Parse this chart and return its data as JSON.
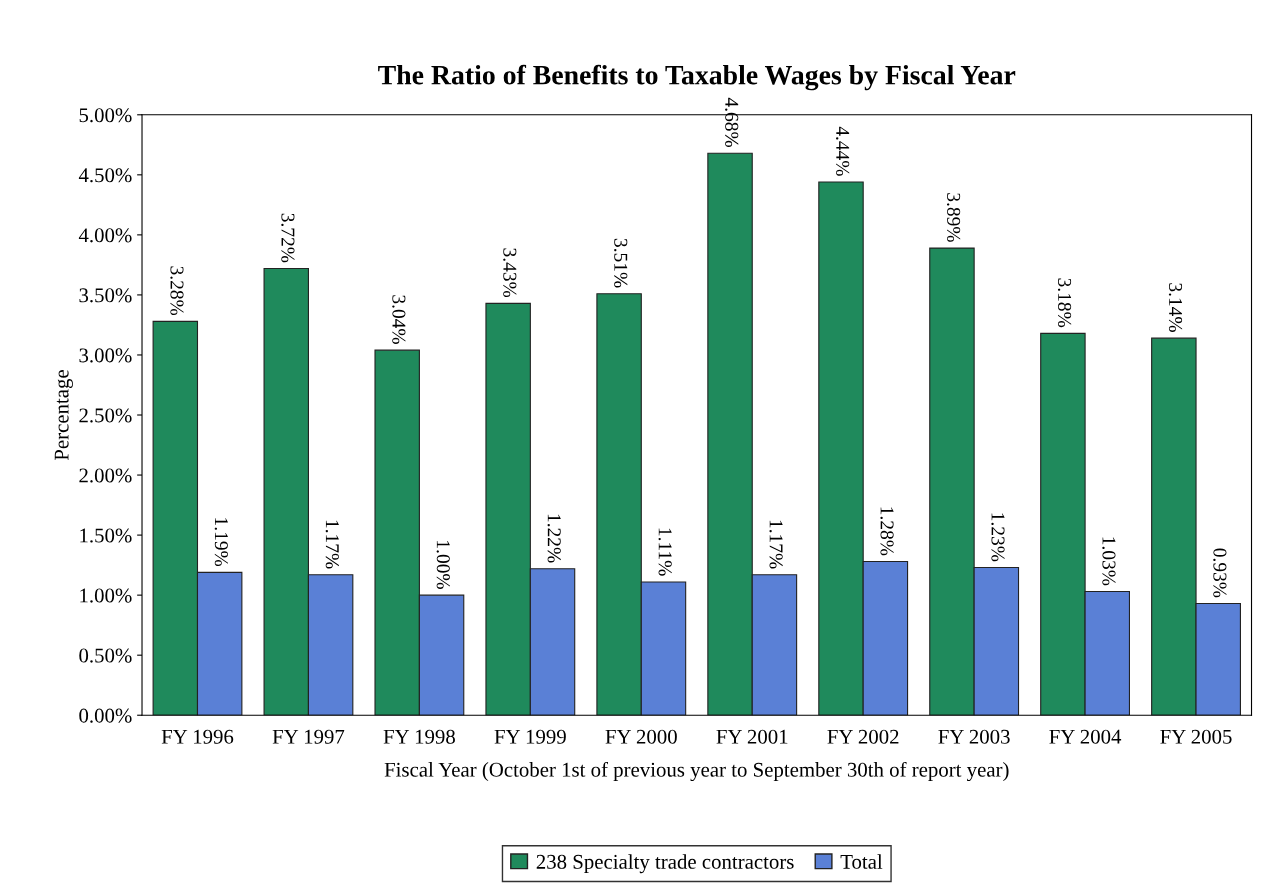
{
  "chart_data": {
    "type": "bar",
    "title": "The Ratio of Benefits to Taxable Wages by Fiscal Year",
    "xlabel": "Fiscal Year (October 1st of previous year to September 30th of report year)",
    "ylabel": "Percentage",
    "categories": [
      "FY 1996",
      "FY 1997",
      "FY 1998",
      "FY 1999",
      "FY 2000",
      "FY 2001",
      "FY 2002",
      "FY 2003",
      "FY 2004",
      "FY 2005"
    ],
    "series": [
      {
        "name": "238 Specialty trade contractors",
        "color": "#1f8a5c",
        "values": [
          3.28,
          3.72,
          3.04,
          3.43,
          3.51,
          4.68,
          4.44,
          3.89,
          3.18,
          3.14
        ],
        "value_labels": [
          "3.28%",
          "3.72%",
          "3.04%",
          "3.43%",
          "3.51%",
          "4.68%",
          "4.44%",
          "3.89%",
          "3.18%",
          "3.14%"
        ]
      },
      {
        "name": "Total",
        "color": "#5a80d6",
        "values": [
          1.19,
          1.17,
          1.0,
          1.22,
          1.11,
          1.17,
          1.28,
          1.23,
          1.03,
          0.93
        ],
        "value_labels": [
          "1.19%",
          "1.17%",
          "1.00%",
          "1.22%",
          "1.11%",
          "1.17%",
          "1.28%",
          "1.23%",
          "1.03%",
          "0.93%"
        ]
      }
    ],
    "ylim": [
      0,
      5
    ],
    "yticks": [
      {
        "value": 0,
        "label": "0.00%"
      },
      {
        "value": 0.5,
        "label": "0.50%"
      },
      {
        "value": 1,
        "label": "1.00%"
      },
      {
        "value": 1.5,
        "label": "1.50%"
      },
      {
        "value": 2,
        "label": "2.00%"
      },
      {
        "value": 2.5,
        "label": "2.50%"
      },
      {
        "value": 3,
        "label": "3.00%"
      },
      {
        "value": 3.5,
        "label": "3.50%"
      },
      {
        "value": 4,
        "label": "4.00%"
      },
      {
        "value": 4.5,
        "label": "4.50%"
      },
      {
        "value": 5,
        "label": "5.00%"
      }
    ],
    "legend": "bottom"
  }
}
